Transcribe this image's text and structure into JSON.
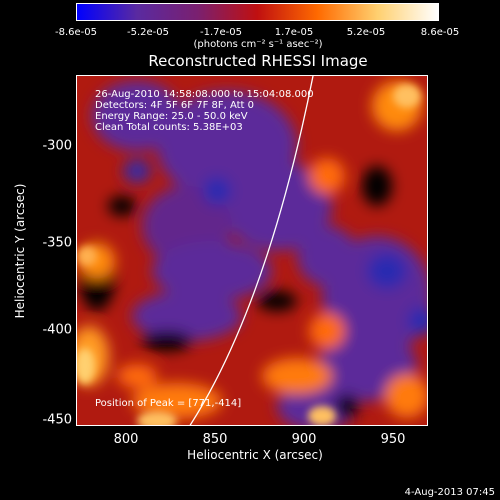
{
  "colorbar": {
    "ticks": [
      "-8.6e-05",
      "-5.2e-05",
      "-1.7e-05",
      "1.7e-05",
      "5.2e-05",
      "8.6e-05"
    ],
    "units": "(photons cm⁻² s⁻¹ asec⁻²)",
    "colors": [
      "#0000ff",
      "#5a2aa0",
      "#7a2070",
      "#c01010",
      "#ff6a00",
      "#ffd070",
      "#ffffff"
    ]
  },
  "title": "Reconstructed RHESSI Image",
  "info": {
    "line1": "26-Aug-2010 14:58:08.000 to 15:04:08.000",
    "line2": "Detectors: 4F 5F 6F 7F 8F, Att 0",
    "line3": "Energy Range: 25.0 - 50.0 keV",
    "line4": "Clean    Total counts: 5.38E+03"
  },
  "peak": "Position of Peak = [771,-414]",
  "axes": {
    "xlabel": "Heliocentric X (arcsec)",
    "ylabel": "Heliocentric Y (arcsec)",
    "xticks": [
      "800",
      "850",
      "900",
      "950"
    ],
    "yticks": [
      "-300",
      "-350",
      "-400",
      "-450"
    ]
  },
  "datestamp": "4-Aug-2013 07:45"
}
